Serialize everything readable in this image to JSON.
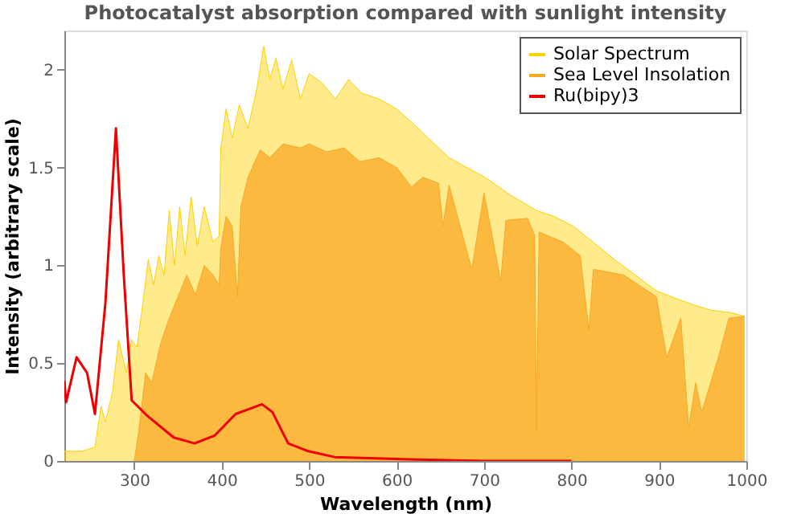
{
  "chart_data": {
    "type": "area",
    "title": "Photocatalyst absorption compared with sunlight intensity",
    "xlabel": "Wavelength (nm)",
    "ylabel": "Intensity (arbitrary scale)",
    "xlim": [
      220,
      1000
    ],
    "xticks": [
      300,
      400,
      500,
      600,
      700,
      800,
      900,
      1000
    ],
    "ylim": [
      0,
      2.2
    ],
    "yticks": [
      0,
      0.5,
      1,
      1.5,
      2
    ],
    "legend": "top right",
    "grid": false,
    "series": [
      {
        "name": "Solar Spectrum",
        "type": "area",
        "color": "#ffd000",
        "x": [
          220,
          240,
          255,
          262,
          267,
          275,
          282,
          291,
          297,
          303,
          309,
          316,
          322,
          328,
          334,
          340,
          346,
          352,
          358,
          365,
          372,
          380,
          390,
          397,
          399,
          405,
          412,
          420,
          430,
          440,
          448,
          455,
          462,
          470,
          480,
          490,
          500,
          515,
          530,
          545,
          560,
          580,
          600,
          620,
          648,
          660,
          701,
          730,
          760,
          780,
          802,
          830,
          849,
          870,
          897,
          920,
          938,
          960,
          980,
          998
        ],
        "values": [
          0.05,
          0.05,
          0.07,
          0.28,
          0.2,
          0.35,
          0.62,
          0.45,
          0.62,
          0.58,
          0.78,
          1.03,
          0.9,
          1.05,
          0.95,
          1.28,
          1.0,
          1.3,
          1.05,
          1.35,
          1.1,
          1.3,
          1.12,
          1.15,
          1.6,
          1.8,
          1.65,
          1.82,
          1.7,
          1.9,
          2.12,
          1.95,
          2.06,
          1.9,
          2.05,
          1.85,
          1.98,
          1.93,
          1.85,
          1.95,
          1.88,
          1.85,
          1.8,
          1.72,
          1.6,
          1.55,
          1.45,
          1.36,
          1.28,
          1.25,
          1.2,
          1.1,
          1.03,
          0.96,
          0.87,
          0.83,
          0.8,
          0.77,
          0.76,
          0.74
        ]
      },
      {
        "name": "Sea Level Insolation",
        "type": "area",
        "color": "#f9a825",
        "x": [
          300,
          305,
          313,
          320,
          330,
          340,
          360,
          370,
          380,
          390,
          397,
          399,
          405,
          412,
          418,
          422,
          430,
          444,
          455,
          470,
          490,
          500,
          520,
          540,
          558,
          580,
          600,
          617,
          630,
          648,
          653,
          660,
          686,
          700,
          719,
          725,
          750,
          758,
          760,
          763,
          790,
          810,
          820,
          825,
          860,
          897,
          909,
          925,
          934,
          942,
          949,
          968,
          980,
          998
        ],
        "values": [
          0,
          0.15,
          0.45,
          0.4,
          0.6,
          0.73,
          0.95,
          0.85,
          1.0,
          0.95,
          0.9,
          1.09,
          1.25,
          1.2,
          0.84,
          1.3,
          1.45,
          1.59,
          1.55,
          1.62,
          1.6,
          1.62,
          1.58,
          1.6,
          1.53,
          1.55,
          1.5,
          1.4,
          1.45,
          1.42,
          1.2,
          1.41,
          0.98,
          1.37,
          0.92,
          1.23,
          1.24,
          1.15,
          0.16,
          1.17,
          1.12,
          1.05,
          0.67,
          0.98,
          0.95,
          0.84,
          0.53,
          0.73,
          0.17,
          0.4,
          0.25,
          0.53,
          0.73,
          0.74
        ]
      },
      {
        "name": "Ru(bipy)3",
        "type": "line",
        "color": "#ee0000",
        "x": [
          220,
          222,
          234,
          246,
          255,
          267,
          279,
          288,
          297,
          315,
          345,
          369,
          392,
          416,
          446,
          458,
          476,
          499,
          529,
          600,
          700,
          800
        ],
        "values": [
          0.41,
          0.3,
          0.53,
          0.45,
          0.24,
          0.81,
          1.7,
          0.95,
          0.31,
          0.23,
          0.12,
          0.09,
          0.13,
          0.24,
          0.29,
          0.25,
          0.09,
          0.05,
          0.02,
          0.01,
          0.0,
          0.0
        ]
      }
    ]
  }
}
